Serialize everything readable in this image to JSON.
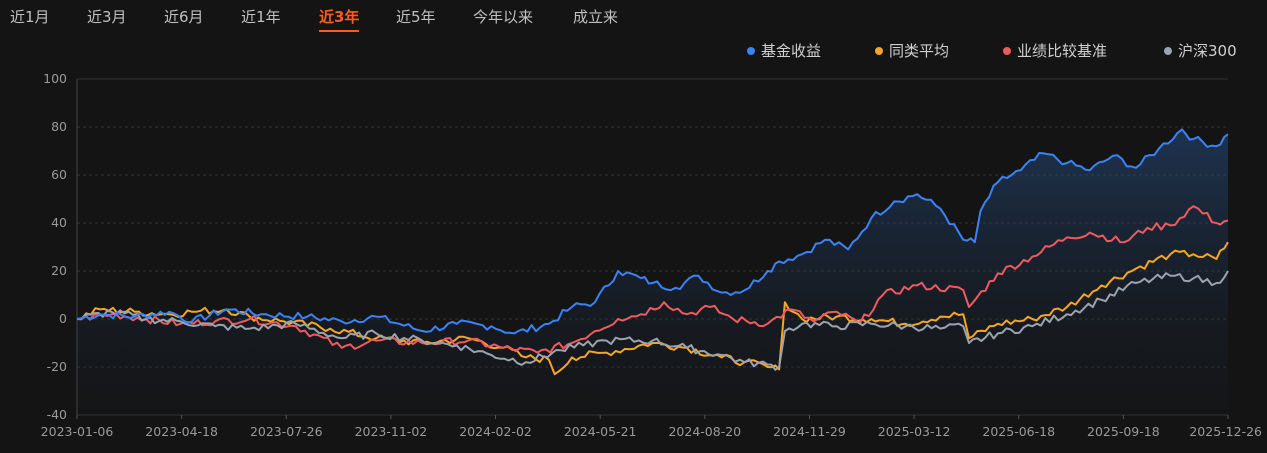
{
  "tabs": [
    {
      "label": "近1月",
      "active": false
    },
    {
      "label": "近3月",
      "active": false
    },
    {
      "label": "近6月",
      "active": false
    },
    {
      "label": "近1年",
      "active": false
    },
    {
      "label": "近3年",
      "active": true
    },
    {
      "label": "近5年",
      "active": false
    },
    {
      "label": "今年以来",
      "active": false
    },
    {
      "label": "成立来",
      "active": false
    }
  ],
  "legend": [
    {
      "label": "基金收益",
      "color": "#3b82f6"
    },
    {
      "label": "同类平均",
      "color": "#f5a623"
    },
    {
      "label": "业绩比较基准",
      "color": "#ef5a5f"
    },
    {
      "label": "沪深300",
      "color": "#9ca3af"
    }
  ],
  "chart_data": {
    "type": "line",
    "x_ticks": [
      "2023-01-06",
      "2023-04-18",
      "2023-07-26",
      "2023-11-02",
      "2024-02-02",
      "2024-05-21",
      "2024-08-20",
      "2024-11-29",
      "2025-03-12",
      "2025-06-18",
      "2025-09-18",
      "2025-12-26"
    ],
    "y_ticks": [
      100,
      80,
      60,
      40,
      20,
      0,
      -20,
      -40
    ],
    "ylim": [
      -40,
      100
    ],
    "xlim": [
      0,
      1
    ],
    "area_series": "基金收益",
    "series": [
      {
        "name": "基金收益",
        "color": "#3b82f6",
        "x": [
          0,
          0.02,
          0.05,
          0.08,
          0.1,
          0.13,
          0.16,
          0.2,
          0.23,
          0.26,
          0.3,
          0.33,
          0.36,
          0.38,
          0.41,
          0.43,
          0.45,
          0.47,
          0.49,
          0.5,
          0.52,
          0.54,
          0.56,
          0.58,
          0.6,
          0.61,
          0.63,
          0.65,
          0.67,
          0.69,
          0.71,
          0.73,
          0.75,
          0.77,
          0.78,
          0.785,
          0.8,
          0.82,
          0.84,
          0.86,
          0.88,
          0.9,
          0.92,
          0.94,
          0.96,
          0.97,
          0.99,
          1.0
        ],
        "y": [
          0,
          2,
          1,
          3,
          -1,
          4,
          2,
          1,
          -1,
          1,
          -5,
          -2,
          -3,
          -6,
          -2,
          5,
          7,
          20,
          17,
          15,
          13,
          18,
          11,
          12,
          20,
          24,
          27,
          33,
          29,
          42,
          49,
          52,
          46,
          33,
          32,
          45,
          57,
          62,
          69,
          65,
          62,
          68,
          63,
          71,
          79,
          75,
          72,
          77
        ]
      },
      {
        "name": "同类平均",
        "color": "#f5a623",
        "x": [
          0,
          0.02,
          0.05,
          0.08,
          0.1,
          0.13,
          0.15,
          0.18,
          0.22,
          0.26,
          0.3,
          0.34,
          0.37,
          0.39,
          0.41,
          0.415,
          0.43,
          0.46,
          0.5,
          0.53,
          0.56,
          0.58,
          0.6,
          0.61,
          0.615,
          0.63,
          0.66,
          0.69,
          0.72,
          0.75,
          0.77,
          0.775,
          0.8,
          0.83,
          0.86,
          0.89,
          0.92,
          0.95,
          0.97,
          0.99,
          1.0
        ],
        "y": [
          0,
          4,
          3,
          2,
          3,
          4,
          1,
          -1,
          -4,
          -8,
          -10,
          -8,
          -12,
          -16,
          -17,
          -23,
          -16,
          -14,
          -10,
          -12,
          -16,
          -18,
          -20,
          -21,
          7,
          0,
          1,
          0,
          -2,
          1,
          2,
          -8,
          -2,
          0,
          5,
          14,
          21,
          27,
          27,
          25,
          32
        ]
      },
      {
        "name": "业绩比较基准",
        "color": "#ef5a5f",
        "x": [
          0,
          0.03,
          0.06,
          0.09,
          0.12,
          0.15,
          0.19,
          0.23,
          0.26,
          0.3,
          0.34,
          0.37,
          0.4,
          0.43,
          0.45,
          0.47,
          0.49,
          0.51,
          0.53,
          0.55,
          0.57,
          0.6,
          0.62,
          0.64,
          0.66,
          0.68,
          0.7,
          0.73,
          0.77,
          0.775,
          0.8,
          0.83,
          0.86,
          0.88,
          0.91,
          0.93,
          0.95,
          0.97,
          0.99,
          1.0
        ],
        "y": [
          0,
          2,
          0,
          -2,
          -1,
          0,
          -3,
          -12,
          -9,
          -10,
          -9,
          -12,
          -14,
          -10,
          -5,
          0,
          2,
          7,
          2,
          5,
          0,
          -2,
          4,
          -1,
          3,
          -2,
          10,
          14,
          12,
          5,
          19,
          26,
          34,
          36,
          32,
          38,
          39,
          47,
          40,
          41
        ]
      },
      {
        "name": "沪深300",
        "color": "#9ca3af",
        "x": [
          0,
          0.03,
          0.06,
          0.09,
          0.12,
          0.15,
          0.19,
          0.23,
          0.26,
          0.3,
          0.33,
          0.36,
          0.39,
          0.42,
          0.44,
          0.46,
          0.5,
          0.53,
          0.56,
          0.58,
          0.6,
          0.61,
          0.615,
          0.63,
          0.66,
          0.69,
          0.72,
          0.75,
          0.77,
          0.775,
          0.8,
          0.83,
          0.86,
          0.89,
          0.92,
          0.95,
          0.97,
          0.99,
          1.0
        ],
        "y": [
          0,
          3,
          0,
          -1,
          -3,
          -4,
          -2,
          -8,
          -6,
          -9,
          -11,
          -15,
          -18,
          -13,
          -11,
          -9,
          -9,
          -12,
          -15,
          -18,
          -19,
          -20,
          -5,
          -2,
          -3,
          -2,
          -3,
          -4,
          -3,
          -10,
          -6,
          -3,
          2,
          8,
          15,
          18,
          17,
          15,
          20
        ]
      }
    ]
  }
}
